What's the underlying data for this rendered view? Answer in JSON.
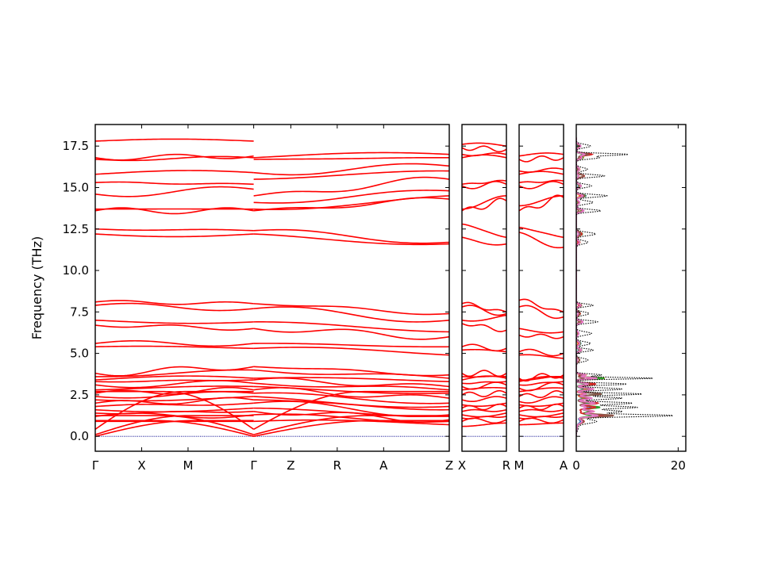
{
  "chart_data": {
    "type": "line",
    "title": "",
    "ylabel": "Frequency (THz)",
    "ylim": [
      -0.9,
      18.8
    ],
    "y_ticks": [
      "0.0",
      "2.5",
      "5.0",
      "7.5",
      "10.0",
      "12.5",
      "15.0",
      "17.5"
    ],
    "y_tick_values": [
      0,
      2.5,
      5,
      7.5,
      10,
      12.5,
      15,
      17.5
    ],
    "band_color": "#ff0000",
    "zero_line_color": "#00008b",
    "panels": [
      {
        "name": "band-panel-main",
        "path_labels": [
          "Γ",
          "X",
          "M",
          "Γ",
          "Z",
          "R",
          "A",
          "Z"
        ],
        "path_positions": [
          0,
          0.5,
          1,
          1.7071,
          2.1071,
          2.6071,
          3.1071,
          3.8142
        ]
      },
      {
        "name": "band-panel-x-r",
        "path_labels": [
          "X",
          "R"
        ],
        "path_positions": [
          0,
          0.4
        ]
      },
      {
        "name": "band-panel-m-a",
        "path_labels": [
          "M",
          "A"
        ],
        "path_positions": [
          0,
          0.4
        ]
      }
    ],
    "band_segments": [
      {
        "panel": 0,
        "from": 0,
        "to": 1.7071,
        "gamma_start": true,
        "gamma_end": true,
        "optical_start": [
          0.9,
          1.2,
          1.4,
          1.6,
          1.8,
          2.0,
          2.2,
          2.4,
          2.6,
          2.8,
          3.1,
          3.3,
          3.4,
          3.6,
          3.8,
          5.4,
          5.6,
          6.7,
          7.0,
          7.9,
          8.1,
          12.2,
          12.5,
          13.6,
          13.7,
          14.6,
          15.3,
          15.8,
          16.7,
          16.8,
          17.8
        ],
        "optical_end": [
          0.9,
          1.3,
          1.5,
          1.7,
          2.0,
          2.2,
          2.4,
          2.6,
          2.8,
          3.0,
          3.2,
          3.4,
          3.5,
          4.0,
          4.2,
          5.3,
          5.6,
          6.5,
          6.9,
          7.7,
          8.0,
          12.2,
          12.4,
          13.6,
          13.7,
          14.9,
          15.2,
          15.9,
          16.8,
          16.9,
          17.8
        ]
      },
      {
        "panel": 0,
        "from": 1.7071,
        "to": 3.8142,
        "gamma_start": true,
        "gamma_end": false,
        "optical_start": [
          0.9,
          1.3,
          1.5,
          1.7,
          2.0,
          2.2,
          2.4,
          2.6,
          2.8,
          3.0,
          3.2,
          3.4,
          3.5,
          4.0,
          4.2,
          5.3,
          5.6,
          6.5,
          6.9,
          7.7,
          8.0,
          12.2,
          12.4,
          13.6,
          13.7,
          14.1,
          14.5,
          15.5,
          15.9,
          16.7,
          16.8
        ],
        "optical_end": [
          0.7,
          0.9,
          1.0,
          1.2,
          1.3,
          1.6,
          1.8,
          2.0,
          2.3,
          2.6,
          2.8,
          3.0,
          3.3,
          3.5,
          3.7,
          4.9,
          5.4,
          6.0,
          6.3,
          7.0,
          7.4,
          11.6,
          11.7,
          14.3,
          14.5,
          14.8,
          15.5,
          16.0,
          16.3,
          16.8,
          17.0
        ]
      },
      {
        "panel": 1,
        "from": 0,
        "to": 0.4,
        "gamma_start": false,
        "gamma_end": false,
        "optical_start": [
          0.6,
          0.9,
          1.1,
          1.3,
          1.5,
          1.7,
          1.9,
          2.2,
          2.5,
          2.8,
          3.0,
          3.2,
          3.4,
          3.6,
          3.8,
          5.2,
          5.4,
          6.8,
          7.0,
          7.8,
          8.0,
          12.0,
          12.8,
          13.6,
          13.7,
          15.1,
          15.2,
          16.8,
          17.0,
          17.4,
          17.6
        ],
        "optical_end": [
          0.8,
          1.0,
          1.2,
          1.4,
          1.6,
          1.8,
          2.0,
          2.3,
          2.6,
          2.9,
          3.1,
          3.3,
          3.5,
          3.6,
          3.8,
          5.1,
          5.3,
          6.4,
          7.3,
          7.4,
          7.5,
          11.6,
          12.0,
          14.2,
          14.5,
          15.2,
          15.4,
          16.8,
          17.0,
          17.3,
          17.5
        ]
      },
      {
        "panel": 2,
        "from": 0,
        "to": 0.4,
        "gamma_start": false,
        "gamma_end": false,
        "optical_start": [
          0.7,
          0.9,
          1.1,
          1.3,
          1.5,
          1.7,
          1.9,
          2.1,
          2.4,
          2.7,
          2.9,
          3.1,
          3.3,
          3.4,
          3.5,
          4.9,
          5.1,
          6.1,
          6.5,
          7.8,
          8.2,
          12.3,
          12.6,
          13.6,
          13.9,
          15.1,
          15.3,
          15.8,
          16.0,
          16.7,
          16.9
        ],
        "optical_end": [
          0.8,
          1.0,
          1.2,
          1.4,
          1.6,
          1.8,
          2.0,
          2.3,
          2.6,
          2.9,
          3.1,
          3.3,
          3.5,
          3.6,
          3.7,
          4.7,
          5.0,
          6.0,
          6.3,
          7.2,
          7.5,
          11.4,
          12.0,
          14.4,
          14.5,
          15.2,
          15.4,
          15.8,
          16.1,
          16.8,
          17.0
        ]
      }
    ],
    "dos": {
      "x_ticks": [
        "0",
        "20"
      ],
      "x_tick_values": [
        0,
        20
      ],
      "xlim": [
        0,
        21.5
      ],
      "total_color": "#000000",
      "projected_colors": [
        "#1f77b4",
        "#ff7f0e",
        "#2ca02c",
        "#d62728",
        "#8c564b",
        "#e377c2"
      ],
      "total_peaks": [
        {
          "f": 0.5,
          "h": 0.4,
          "w": 0.15
        },
        {
          "f": 0.9,
          "h": 4.0,
          "w": 0.12
        },
        {
          "f": 1.25,
          "h": 19.0,
          "w": 0.07
        },
        {
          "f": 1.5,
          "h": 9.0,
          "w": 0.08
        },
        {
          "f": 1.75,
          "h": 12.0,
          "w": 0.07
        },
        {
          "f": 2.0,
          "h": 11.0,
          "w": 0.07
        },
        {
          "f": 2.3,
          "h": 9.0,
          "w": 0.07
        },
        {
          "f": 2.55,
          "h": 13.0,
          "w": 0.06
        },
        {
          "f": 2.85,
          "h": 9.0,
          "w": 0.07
        },
        {
          "f": 3.15,
          "h": 10.0,
          "w": 0.06
        },
        {
          "f": 3.5,
          "h": 15.0,
          "w": 0.05
        },
        {
          "f": 3.7,
          "h": 5.0,
          "w": 0.06
        },
        {
          "f": 4.6,
          "h": 2.3,
          "w": 0.1
        },
        {
          "f": 5.2,
          "h": 3.3,
          "w": 0.08
        },
        {
          "f": 5.6,
          "h": 2.8,
          "w": 0.1
        },
        {
          "f": 6.2,
          "h": 3.0,
          "w": 0.1
        },
        {
          "f": 6.9,
          "h": 4.2,
          "w": 0.08
        },
        {
          "f": 7.4,
          "h": 2.5,
          "w": 0.1
        },
        {
          "f": 7.9,
          "h": 3.3,
          "w": 0.08
        },
        {
          "f": 11.7,
          "h": 2.3,
          "w": 0.1
        },
        {
          "f": 12.2,
          "h": 3.8,
          "w": 0.1
        },
        {
          "f": 13.6,
          "h": 4.8,
          "w": 0.08
        },
        {
          "f": 14.1,
          "h": 3.3,
          "w": 0.1
        },
        {
          "f": 14.5,
          "h": 6.0,
          "w": 0.08
        },
        {
          "f": 15.1,
          "h": 3.0,
          "w": 0.1
        },
        {
          "f": 15.7,
          "h": 5.5,
          "w": 0.08
        },
        {
          "f": 16.1,
          "h": 2.2,
          "w": 0.1
        },
        {
          "f": 16.8,
          "h": 4.5,
          "w": 0.08
        },
        {
          "f": 17.0,
          "h": 10.0,
          "w": 0.06
        },
        {
          "f": 17.5,
          "h": 2.8,
          "w": 0.1
        }
      ]
    }
  }
}
